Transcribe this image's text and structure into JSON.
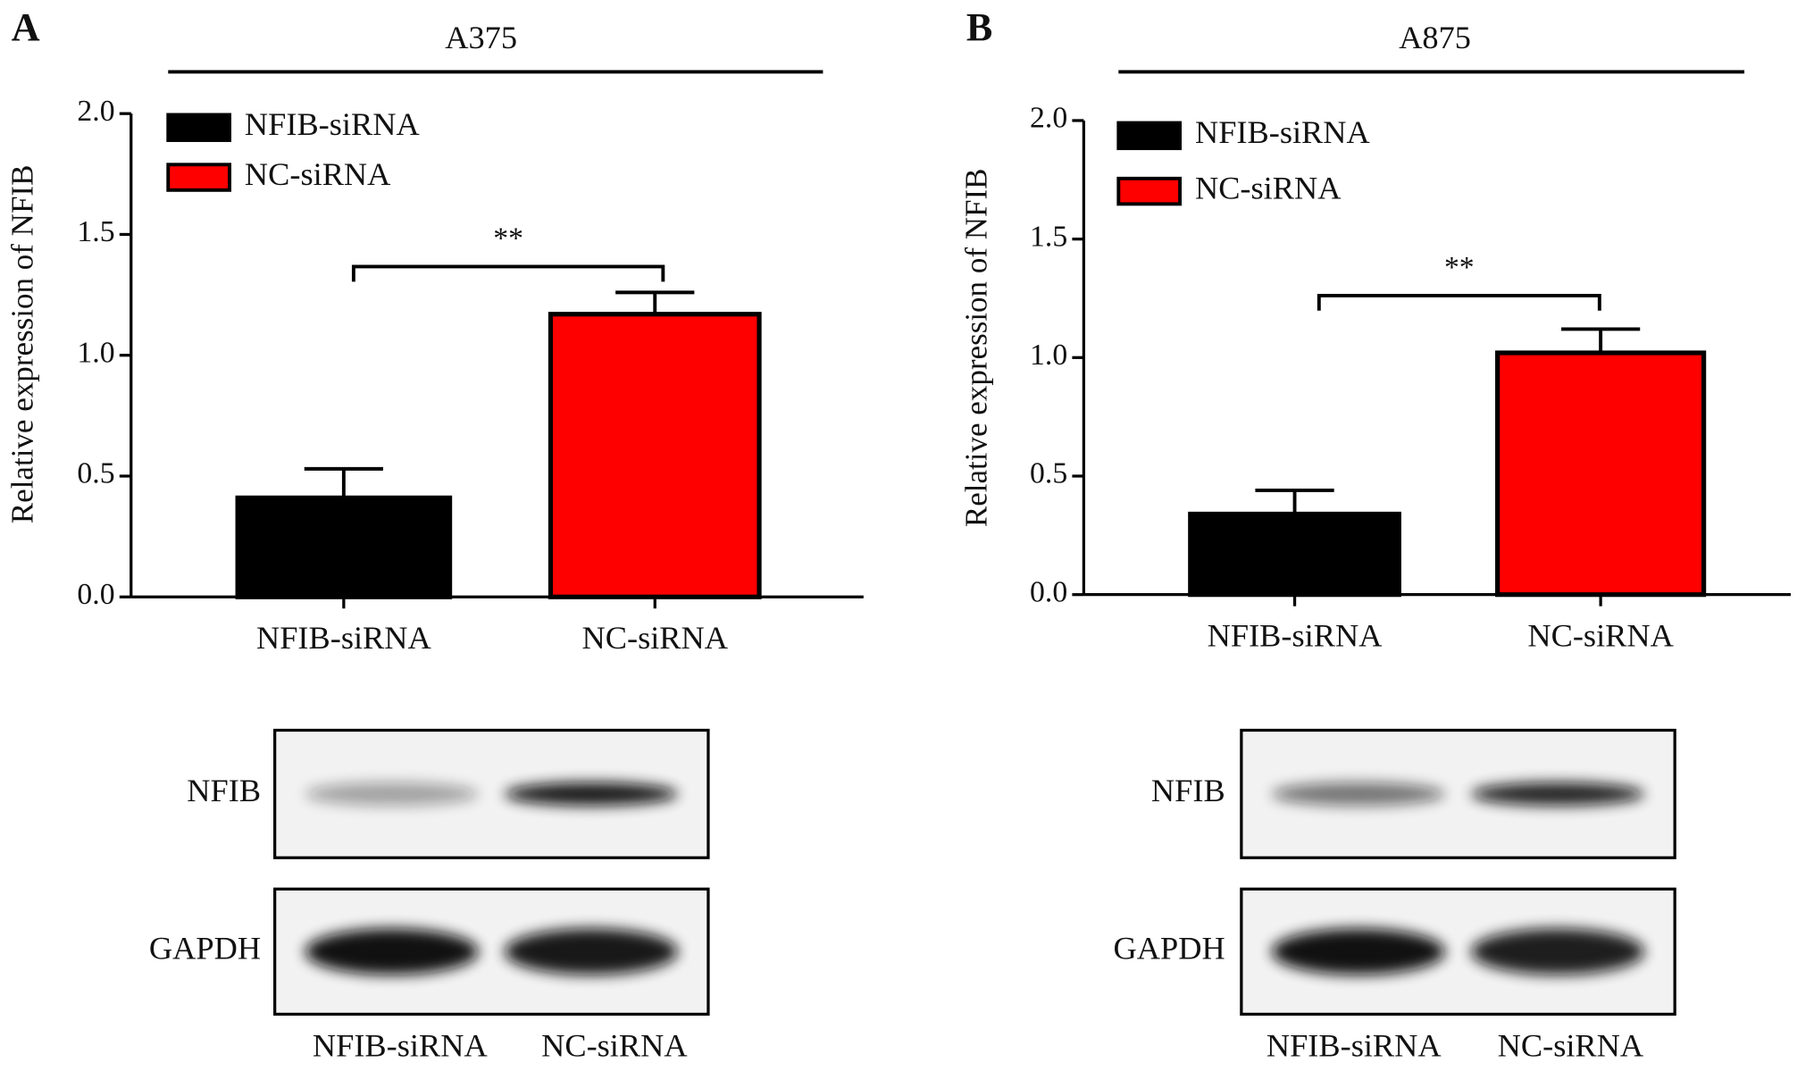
{
  "chart_data": [
    {
      "type": "bar",
      "panel": "A",
      "title": "A375",
      "ylabel": "Relative expression of NFIB",
      "categories": [
        "NFIB-siRNA",
        "NC-siRNA"
      ],
      "values": [
        0.41,
        1.17
      ],
      "errors": [
        0.12,
        0.09
      ],
      "colors": [
        "#000000",
        "#ff0000"
      ],
      "annotation": "**",
      "ylim": [
        0,
        2
      ],
      "yticks": [
        {
          "value": 0,
          "label": "0.0"
        },
        0.5,
        {
          "value": 1,
          "label": "1.0"
        },
        1.5,
        {
          "value": 2,
          "label": "2.0"
        }
      ],
      "legend": "upper left"
    },
    {
      "type": "bar",
      "panel": "B",
      "title": "A875",
      "ylabel": "Relative expression of NFIB",
      "categories": [
        "NFIB-siRNA",
        "NC-siRNA"
      ],
      "values": [
        0.34,
        1.02
      ],
      "errors": [
        0.1,
        0.1
      ],
      "colors": [
        "#000000",
        "#ff0000"
      ],
      "annotation": "**",
      "ylim": [
        0,
        2
      ],
      "yticks": [
        {
          "value": 0,
          "label": "0.0"
        },
        0.5,
        {
          "value": 1,
          "label": "1.0"
        },
        1.5,
        {
          "value": 2,
          "label": "2.0"
        }
      ],
      "legend": "upper left"
    }
  ],
  "blots": [
    {
      "rows": [
        "NFIB",
        "GAPDH"
      ],
      "lanes": [
        "NFIB-siRNA",
        "NC-siRNA"
      ]
    },
    {
      "rows": [
        "NFIB",
        "GAPDH"
      ],
      "lanes": [
        "NFIB-siRNA",
        "NC-siRNA"
      ]
    }
  ]
}
